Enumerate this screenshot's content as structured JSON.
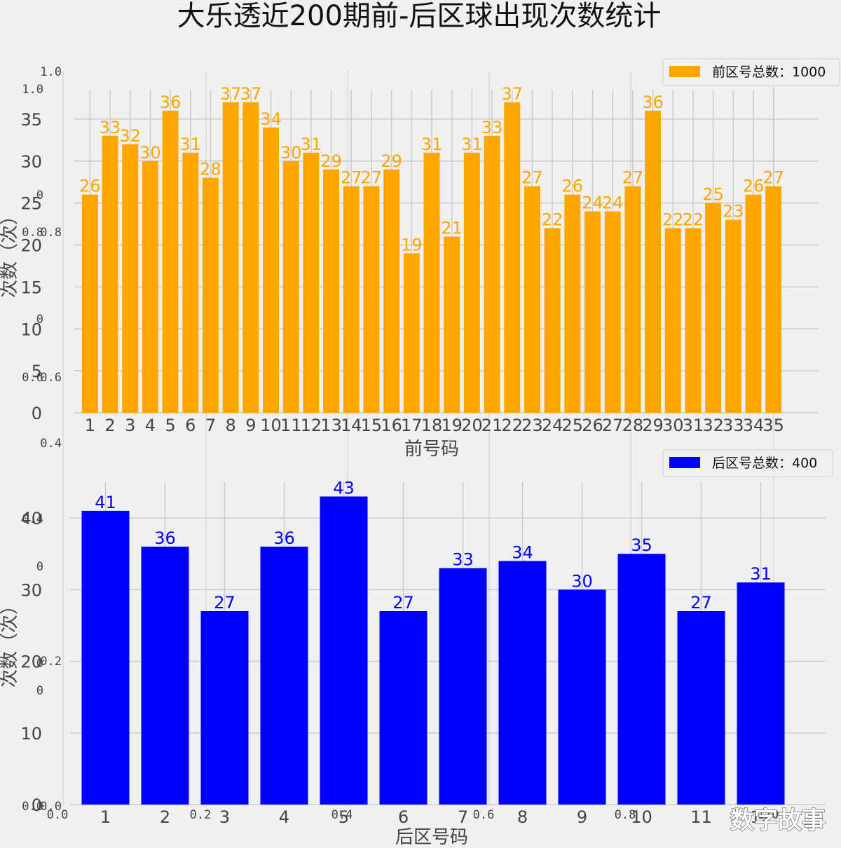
{
  "title": "大乐透近200期前-后区球出现次数统计",
  "watermark": "数字故事",
  "chart_data": [
    {
      "type": "bar",
      "categories": [
        "1",
        "2",
        "3",
        "4",
        "5",
        "6",
        "7",
        "8",
        "9",
        "10",
        "11",
        "12",
        "13",
        "14",
        "15",
        "16",
        "17",
        "18",
        "19",
        "20",
        "21",
        "22",
        "23",
        "24",
        "25",
        "26",
        "27",
        "28",
        "29",
        "30",
        "31",
        "32",
        "33",
        "34",
        "35"
      ],
      "values": [
        26,
        33,
        32,
        30,
        36,
        31,
        28,
        37,
        37,
        34,
        30,
        31,
        29,
        27,
        27,
        29,
        19,
        31,
        21,
        31,
        33,
        37,
        27,
        22,
        26,
        24,
        24,
        27,
        36,
        22,
        22,
        25,
        23,
        26,
        27
      ],
      "xlabel": "前号码",
      "ylabel": "次数（次）",
      "legend": "前区号总数：1000",
      "legend_position": "top-right",
      "ylim": [
        0,
        38.5
      ],
      "yticks": [
        0,
        5,
        10,
        15,
        20,
        25,
        30,
        35
      ],
      "color": "#ffa500",
      "grid": true
    },
    {
      "type": "bar",
      "categories": [
        "1",
        "2",
        "3",
        "4",
        "5",
        "6",
        "7",
        "8",
        "9",
        "10",
        "11",
        "12"
      ],
      "values": [
        41,
        36,
        27,
        36,
        43,
        27,
        33,
        34,
        30,
        35,
        27,
        31
      ],
      "xlabel": "后区号码",
      "ylabel": "次数（次）",
      "legend": "后区号总数：400",
      "legend_position": "top-right",
      "ylim": [
        0,
        45
      ],
      "yticks": [
        0,
        10,
        20,
        30,
        40
      ],
      "color": "#0000ff",
      "grid": true
    }
  ],
  "background_axis": {
    "y_ticks": [
      "1.0",
      "0.8",
      "0.6",
      "0.4",
      "0.2",
      "0.0"
    ],
    "x_ticks": [
      "0.0",
      "0.2",
      "0.4",
      "0.6",
      "0.8",
      "1.0"
    ],
    "inner_y_ticks": [
      "1.0",
      "0",
      "0.8",
      "0",
      "0.6",
      "0.4",
      "0",
      "0",
      "0",
      "0.0"
    ]
  }
}
